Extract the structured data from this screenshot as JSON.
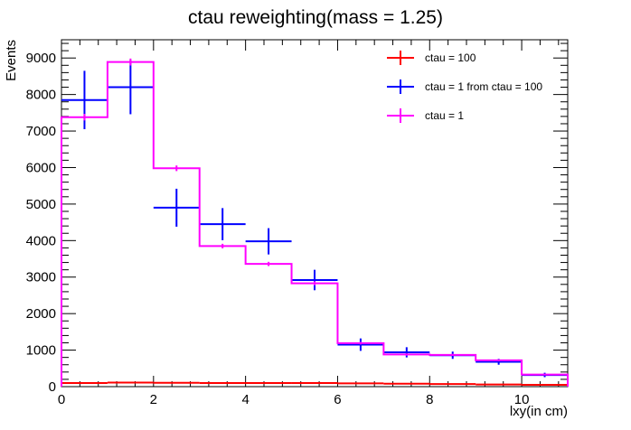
{
  "chart_data": {
    "type": "histogram",
    "title": "ctau reweighting(mass = 1.25)",
    "xlabel": "lxy(in cm)",
    "ylabel": "Events",
    "xlim": [
      0,
      11
    ],
    "ylim": [
      0,
      9500
    ],
    "x_ticks": [
      0,
      2,
      4,
      6,
      8,
      10
    ],
    "y_ticks": [
      0,
      1000,
      2000,
      3000,
      4000,
      5000,
      6000,
      7000,
      8000,
      9000
    ],
    "bin_edges": [
      0,
      1,
      2,
      3,
      4,
      5,
      6,
      7,
      8,
      9,
      10,
      11
    ],
    "legend_position": "top-right",
    "series": [
      {
        "name": "ctau = 100",
        "color": "#ff0000",
        "values": [
          100,
          110,
          105,
          100,
          100,
          100,
          90,
          80,
          70,
          60,
          50
        ],
        "errors": [
          10,
          10,
          10,
          10,
          10,
          10,
          10,
          10,
          8,
          8,
          7
        ]
      },
      {
        "name": "ctau = 1 from ctau = 100",
        "color": "#0000ff",
        "values": [
          7850,
          8200,
          4900,
          4450,
          3980,
          2920,
          1150,
          940,
          860,
          680,
          320
        ],
        "errors": [
          800,
          740,
          520,
          440,
          360,
          280,
          170,
          140,
          100,
          80,
          60
        ]
      },
      {
        "name": "ctau = 1",
        "color": "#ff00ff",
        "values": [
          7380,
          8890,
          5980,
          3850,
          3360,
          2830,
          1190,
          880,
          870,
          720,
          330
        ],
        "errors": [
          90,
          95,
          77,
          62,
          58,
          53,
          35,
          30,
          29,
          27,
          18
        ]
      }
    ]
  }
}
